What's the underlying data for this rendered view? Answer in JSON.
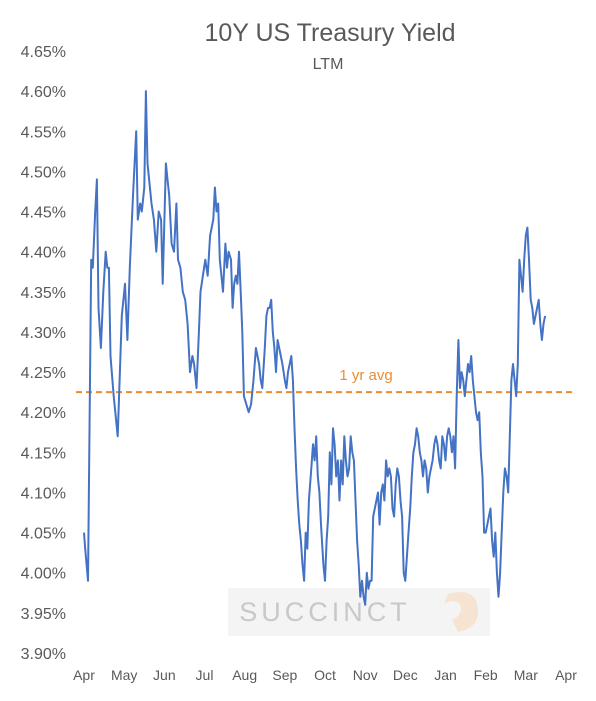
{
  "chart_data": {
    "type": "line",
    "title": "10Y US Treasury Yield",
    "subtitle": "LTM",
    "xlabel": "",
    "ylabel": "",
    "ylim": [
      3.9,
      4.65
    ],
    "ytick_labels": [
      "3.90%",
      "3.95%",
      "4.00%",
      "4.05%",
      "4.10%",
      "4.15%",
      "4.20%",
      "4.25%",
      "4.30%",
      "4.35%",
      "4.40%",
      "4.45%",
      "4.50%",
      "4.55%",
      "4.60%",
      "4.65%"
    ],
    "ytick_values": [
      3.9,
      3.95,
      4.0,
      4.05,
      4.1,
      4.15,
      4.2,
      4.25,
      4.3,
      4.35,
      4.4,
      4.45,
      4.5,
      4.55,
      4.6,
      4.65
    ],
    "x_unit": "month index (0 = Apr start, 12 = Apr start of following year)",
    "x_range": [
      0,
      12.4
    ],
    "xtick_labels": [
      "Apr",
      "May",
      "Jun",
      "Jul",
      "Aug",
      "Sep",
      "Oct",
      "Nov",
      "Dec",
      "Jan",
      "Feb",
      "Mar",
      "Apr"
    ],
    "xtick_values": [
      0,
      1,
      2,
      3,
      4,
      5,
      6,
      7,
      8,
      9,
      10,
      11,
      12
    ],
    "grid": false,
    "legend": "none",
    "annotations": [
      {
        "type": "hline",
        "y": 4.225,
        "label": "1 yr avg",
        "color": "#ED8B2F",
        "style": "dashed"
      }
    ],
    "watermark": "SUCCINCT",
    "series": [
      {
        "color": "#4472C4",
        "points": [
          [
            0.0,
            4.05
          ],
          [
            0.03,
            4.03
          ],
          [
            0.1,
            3.99
          ],
          [
            0.18,
            4.39
          ],
          [
            0.22,
            4.38
          ],
          [
            0.28,
            4.45
          ],
          [
            0.32,
            4.49
          ],
          [
            0.36,
            4.33
          ],
          [
            0.42,
            4.28
          ],
          [
            0.48,
            4.35
          ],
          [
            0.54,
            4.4
          ],
          [
            0.58,
            4.38
          ],
          [
            0.62,
            4.38
          ],
          [
            0.66,
            4.27
          ],
          [
            0.74,
            4.22
          ],
          [
            0.84,
            4.17
          ],
          [
            0.94,
            4.32
          ],
          [
            1.02,
            4.36
          ],
          [
            1.08,
            4.29
          ],
          [
            1.14,
            4.38
          ],
          [
            1.22,
            4.47
          ],
          [
            1.3,
            4.55
          ],
          [
            1.34,
            4.44
          ],
          [
            1.4,
            4.46
          ],
          [
            1.44,
            4.45
          ],
          [
            1.5,
            4.48
          ],
          [
            1.54,
            4.6
          ],
          [
            1.58,
            4.51
          ],
          [
            1.62,
            4.49
          ],
          [
            1.68,
            4.46
          ],
          [
            1.74,
            4.44
          ],
          [
            1.8,
            4.4
          ],
          [
            1.86,
            4.45
          ],
          [
            1.92,
            4.44
          ],
          [
            1.96,
            4.36
          ],
          [
            2.04,
            4.51
          ],
          [
            2.08,
            4.49
          ],
          [
            2.12,
            4.47
          ],
          [
            2.18,
            4.41
          ],
          [
            2.24,
            4.4
          ],
          [
            2.3,
            4.46
          ],
          [
            2.34,
            4.39
          ],
          [
            2.4,
            4.38
          ],
          [
            2.46,
            4.35
          ],
          [
            2.52,
            4.34
          ],
          [
            2.58,
            4.31
          ],
          [
            2.64,
            4.25
          ],
          [
            2.7,
            4.27
          ],
          [
            2.74,
            4.26
          ],
          [
            2.8,
            4.23
          ],
          [
            2.86,
            4.3
          ],
          [
            2.9,
            4.35
          ],
          [
            2.96,
            4.37
          ],
          [
            3.02,
            4.39
          ],
          [
            3.08,
            4.37
          ],
          [
            3.14,
            4.42
          ],
          [
            3.18,
            4.43
          ],
          [
            3.22,
            4.44
          ],
          [
            3.26,
            4.48
          ],
          [
            3.3,
            4.45
          ],
          [
            3.34,
            4.46
          ],
          [
            3.38,
            4.39
          ],
          [
            3.42,
            4.37
          ],
          [
            3.46,
            4.35
          ],
          [
            3.52,
            4.41
          ],
          [
            3.56,
            4.38
          ],
          [
            3.6,
            4.4
          ],
          [
            3.66,
            4.39
          ],
          [
            3.7,
            4.33
          ],
          [
            3.74,
            4.36
          ],
          [
            3.78,
            4.37
          ],
          [
            3.82,
            4.36
          ],
          [
            3.86,
            4.4
          ],
          [
            3.9,
            4.35
          ],
          [
            3.94,
            4.3
          ],
          [
            3.98,
            4.22
          ],
          [
            4.04,
            4.21
          ],
          [
            4.1,
            4.2
          ],
          [
            4.16,
            4.21
          ],
          [
            4.22,
            4.24
          ],
          [
            4.28,
            4.28
          ],
          [
            4.32,
            4.27
          ],
          [
            4.36,
            4.26
          ],
          [
            4.4,
            4.24
          ],
          [
            4.44,
            4.23
          ],
          [
            4.5,
            4.28
          ],
          [
            4.54,
            4.32
          ],
          [
            4.58,
            4.33
          ],
          [
            4.62,
            4.33
          ],
          [
            4.66,
            4.34
          ],
          [
            4.7,
            4.3
          ],
          [
            4.74,
            4.28
          ],
          [
            4.78,
            4.25
          ],
          [
            4.82,
            4.29
          ],
          [
            4.86,
            4.28
          ],
          [
            4.9,
            4.27
          ],
          [
            4.94,
            4.26
          ],
          [
            5.0,
            4.24
          ],
          [
            5.04,
            4.23
          ],
          [
            5.08,
            4.25
          ],
          [
            5.12,
            4.26
          ],
          [
            5.16,
            4.27
          ],
          [
            5.2,
            4.24
          ],
          [
            5.24,
            4.18
          ],
          [
            5.28,
            4.13
          ],
          [
            5.32,
            4.09
          ],
          [
            5.36,
            4.06
          ],
          [
            5.4,
            4.04
          ],
          [
            5.44,
            4.01
          ],
          [
            5.48,
            3.99
          ],
          [
            5.52,
            4.05
          ],
          [
            5.56,
            4.03
          ],
          [
            5.6,
            4.09
          ],
          [
            5.66,
            4.13
          ],
          [
            5.7,
            4.16
          ],
          [
            5.74,
            4.14
          ],
          [
            5.78,
            4.17
          ],
          [
            5.82,
            4.12
          ],
          [
            5.86,
            4.1
          ],
          [
            5.9,
            4.06
          ],
          [
            5.96,
            4.01
          ],
          [
            6.0,
            3.99
          ],
          [
            6.04,
            4.04
          ],
          [
            6.08,
            4.07
          ],
          [
            6.12,
            4.15
          ],
          [
            6.16,
            4.11
          ],
          [
            6.2,
            4.18
          ],
          [
            6.24,
            4.16
          ],
          [
            6.28,
            4.12
          ],
          [
            6.32,
            4.14
          ],
          [
            6.36,
            4.09
          ],
          [
            6.4,
            4.14
          ],
          [
            6.44,
            4.11
          ],
          [
            6.48,
            4.17
          ],
          [
            6.52,
            4.14
          ],
          [
            6.56,
            4.12
          ],
          [
            6.6,
            4.13
          ],
          [
            6.64,
            4.17
          ],
          [
            6.68,
            4.15
          ],
          [
            6.72,
            4.14
          ],
          [
            6.76,
            4.09
          ],
          [
            6.8,
            4.04
          ],
          [
            6.84,
            4.01
          ],
          [
            6.88,
            3.97
          ],
          [
            6.92,
            3.99
          ],
          [
            6.96,
            3.97
          ],
          [
            7.0,
            3.96
          ],
          [
            7.04,
            4.0
          ],
          [
            7.08,
            3.98
          ],
          [
            7.12,
            3.99
          ],
          [
            7.16,
            3.99
          ],
          [
            7.2,
            4.07
          ],
          [
            7.24,
            4.08
          ],
          [
            7.28,
            4.09
          ],
          [
            7.32,
            4.1
          ],
          [
            7.36,
            4.06
          ],
          [
            7.4,
            4.1
          ],
          [
            7.44,
            4.11
          ],
          [
            7.48,
            4.09
          ],
          [
            7.52,
            4.14
          ],
          [
            7.56,
            4.12
          ],
          [
            7.6,
            4.13
          ],
          [
            7.64,
            4.12
          ],
          [
            7.68,
            4.08
          ],
          [
            7.72,
            4.07
          ],
          [
            7.76,
            4.11
          ],
          [
            7.8,
            4.13
          ],
          [
            7.84,
            4.12
          ],
          [
            7.88,
            4.09
          ],
          [
            7.92,
            4.07
          ],
          [
            7.96,
            4.0
          ],
          [
            8.0,
            3.99
          ],
          [
            8.04,
            4.02
          ],
          [
            8.08,
            4.05
          ],
          [
            8.12,
            4.08
          ],
          [
            8.16,
            4.12
          ],
          [
            8.2,
            4.15
          ],
          [
            8.24,
            4.16
          ],
          [
            8.28,
            4.18
          ],
          [
            8.32,
            4.17
          ],
          [
            8.36,
            4.15
          ],
          [
            8.4,
            4.14
          ],
          [
            8.44,
            4.12
          ],
          [
            8.48,
            4.14
          ],
          [
            8.52,
            4.13
          ],
          [
            8.56,
            4.1
          ],
          [
            8.6,
            4.12
          ],
          [
            8.64,
            4.13
          ],
          [
            8.68,
            4.14
          ],
          [
            8.72,
            4.16
          ],
          [
            8.76,
            4.17
          ],
          [
            8.8,
            4.16
          ],
          [
            8.84,
            4.14
          ],
          [
            8.88,
            4.13
          ],
          [
            8.92,
            4.17
          ],
          [
            8.96,
            4.16
          ],
          [
            9.0,
            4.14
          ],
          [
            9.04,
            4.17
          ],
          [
            9.08,
            4.18
          ],
          [
            9.12,
            4.17
          ],
          [
            9.16,
            4.15
          ],
          [
            9.2,
            4.17
          ],
          [
            9.24,
            4.13
          ],
          [
            9.28,
            4.22
          ],
          [
            9.32,
            4.29
          ],
          [
            9.36,
            4.23
          ],
          [
            9.4,
            4.25
          ],
          [
            9.44,
            4.24
          ],
          [
            9.48,
            4.22
          ],
          [
            9.52,
            4.24
          ],
          [
            9.56,
            4.26
          ],
          [
            9.6,
            4.25
          ],
          [
            9.64,
            4.27
          ],
          [
            9.68,
            4.24
          ],
          [
            9.72,
            4.22
          ],
          [
            9.76,
            4.2
          ],
          [
            9.8,
            4.19
          ],
          [
            9.84,
            4.2
          ],
          [
            9.88,
            4.15
          ],
          [
            9.92,
            4.12
          ],
          [
            9.96,
            4.05
          ],
          [
            10.0,
            4.05
          ],
          [
            10.04,
            4.06
          ],
          [
            10.08,
            4.07
          ],
          [
            10.12,
            4.08
          ],
          [
            10.16,
            4.04
          ],
          [
            10.2,
            4.02
          ],
          [
            10.24,
            4.05
          ],
          [
            10.28,
            4.0
          ],
          [
            10.32,
            3.97
          ],
          [
            10.36,
            4.0
          ],
          [
            10.4,
            4.05
          ],
          [
            10.44,
            4.1
          ],
          [
            10.48,
            4.13
          ],
          [
            10.52,
            4.12
          ],
          [
            10.56,
            4.1
          ],
          [
            10.6,
            4.17
          ],
          [
            10.64,
            4.24
          ],
          [
            10.68,
            4.26
          ],
          [
            10.72,
            4.24
          ],
          [
            10.76,
            4.22
          ],
          [
            10.8,
            4.26
          ],
          [
            10.84,
            4.39
          ],
          [
            10.88,
            4.37
          ],
          [
            10.92,
            4.35
          ],
          [
            10.96,
            4.39
          ],
          [
            11.0,
            4.42
          ],
          [
            11.04,
            4.43
          ],
          [
            11.08,
            4.39
          ],
          [
            11.12,
            4.34
          ],
          [
            11.16,
            4.33
          ],
          [
            11.2,
            4.31
          ],
          [
            11.24,
            4.32
          ],
          [
            11.28,
            4.33
          ],
          [
            11.32,
            4.34
          ],
          [
            11.36,
            4.31
          ],
          [
            11.4,
            4.29
          ],
          [
            11.44,
            4.31
          ],
          [
            11.48,
            4.32
          ]
        ]
      }
    ]
  }
}
